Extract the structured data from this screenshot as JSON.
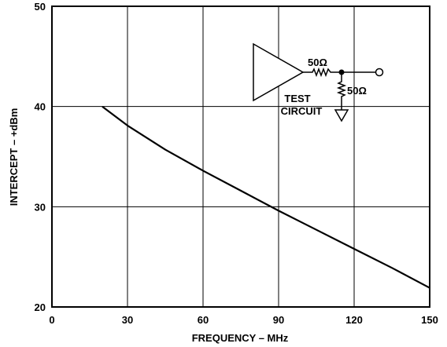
{
  "chart_data": {
    "type": "line",
    "xlabel": "FREQUENCY – MHz",
    "ylabel": "INTERCEPT – +dBm",
    "xlim": [
      0,
      150
    ],
    "ylim": [
      20,
      50
    ],
    "xticks": [
      "0",
      "30",
      "60",
      "90",
      "120",
      "150"
    ],
    "yticks": [
      "20",
      "30",
      "40",
      "50"
    ],
    "xtick_values": [
      0,
      30,
      60,
      90,
      120,
      150
    ],
    "ytick_values": [
      20,
      30,
      40,
      50
    ],
    "grid": true,
    "series": [
      {
        "x": [
          20,
          30,
          45,
          60,
          75,
          90,
          105,
          120,
          135,
          150
        ],
        "y": [
          40.0,
          38.1,
          35.7,
          33.6,
          31.6,
          29.6,
          27.7,
          25.8,
          23.9,
          21.9
        ]
      }
    ],
    "inset": {
      "label_line1": "TEST",
      "label_line2": "CIRCUIT",
      "series_resistor": "50Ω",
      "shunt_resistor": "50Ω"
    }
  }
}
